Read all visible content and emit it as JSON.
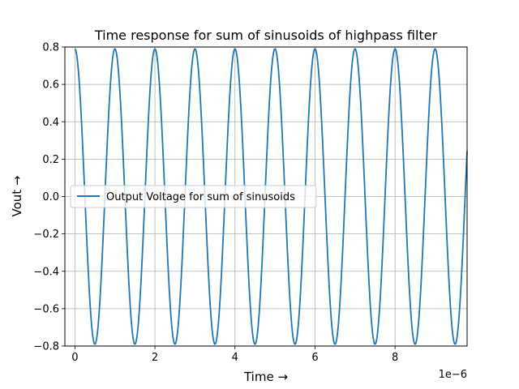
{
  "chart_data": {
    "type": "line",
    "title": "Time response for sum of sinusoids of highpass filter",
    "xlabel": "Time →",
    "ylabel": "Vout →",
    "x_offset_text": "1e−6",
    "xlim": [
      -2.5e-07,
      9.8e-06
    ],
    "ylim": [
      -0.8,
      0.8
    ],
    "x_tick_values": [
      0,
      2e-06,
      4e-06,
      6e-06,
      8e-06
    ],
    "x_tick_labels": [
      "0",
      "2",
      "4",
      "6",
      "8"
    ],
    "y_tick_values": [
      -0.8,
      -0.6,
      -0.4,
      -0.2,
      0.0,
      0.2,
      0.4,
      0.6,
      0.8
    ],
    "y_tick_labels": [
      "−0.8",
      "−0.6",
      "−0.4",
      "−0.2",
      "0.0",
      "0.2",
      "0.4",
      "0.6",
      "0.8"
    ],
    "grid": true,
    "legend_position": "center-left",
    "series": [
      {
        "name": "Output Voltage for sum of sinusoids",
        "color": "#1f77b4",
        "x_start": 0,
        "x_end": 9.8e-06,
        "amplitude": 0.79,
        "frequency_hz": 1000000,
        "phase": "cosine",
        "peaks_x": [
          0,
          1e-06,
          2e-06,
          3e-06,
          4e-06,
          5e-06,
          6e-06,
          7e-06,
          8e-06,
          9e-06
        ],
        "troughs_x": [
          5e-07,
          1.5e-06,
          2.5e-06,
          3.5e-06,
          4.5e-06,
          5.5e-06,
          6.5e-06,
          7.5e-06,
          8.5e-06,
          9.5e-06
        ],
        "peak_value": 0.79,
        "trough_value": -0.79
      }
    ]
  }
}
